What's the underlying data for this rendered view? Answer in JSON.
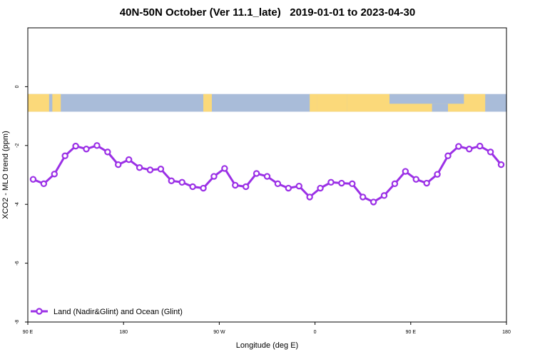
{
  "chart_data": {
    "type": "line",
    "title": "40N-50N October (Ver 11.1_late)   2019-01-01 to 2023-04-30",
    "xlabel": "Longitude (deg E)",
    "ylabel": "XCO2 - MLO trend (ppm)",
    "x_ticks": [
      {
        "value": 90,
        "label": "90 E"
      },
      {
        "value": 180,
        "label": "180"
      },
      {
        "value": 270,
        "label": "90 W"
      },
      {
        "value": 360,
        "label": "0"
      },
      {
        "value": 450,
        "label": "90 E"
      },
      {
        "value": 540,
        "label": "180"
      }
    ],
    "y_ticks": [
      0,
      -2,
      -4,
      -6,
      -8
    ],
    "xlim": [
      90,
      540
    ],
    "ylim": [
      -8,
      2
    ],
    "grid": false,
    "legend_position": "bottom-left",
    "map_strip": {
      "description_free": true,
      "land_color": "#fbd97a",
      "ocean_color": "#a9bcd9",
      "ylim": [
        -0.85,
        -0.25
      ]
    },
    "series": [
      {
        "name": "Land (Nadir&Glint) and Ocean (Glint)",
        "color": "#9b30e6",
        "x": [
          95,
          105,
          115,
          125,
          135,
          145,
          155,
          165,
          175,
          185,
          195,
          205,
          215,
          225,
          235,
          245,
          255,
          265,
          275,
          285,
          295,
          305,
          315,
          325,
          335,
          345,
          355,
          365,
          375,
          385,
          395,
          405,
          415,
          425,
          435,
          445,
          455,
          465,
          475,
          485,
          495,
          505,
          515,
          525,
          535
        ],
        "y": [
          -3.15,
          -3.3,
          -2.97,
          -2.35,
          -2.02,
          -2.12,
          -2.0,
          -2.22,
          -2.65,
          -2.48,
          -2.75,
          -2.83,
          -2.8,
          -3.2,
          -3.25,
          -3.4,
          -3.45,
          -3.05,
          -2.78,
          -3.35,
          -3.4,
          -2.95,
          -3.05,
          -3.3,
          -3.45,
          -3.38,
          -3.75,
          -3.45,
          -3.25,
          -3.28,
          -3.3,
          -3.75,
          -3.92,
          -3.7,
          -3.3,
          -2.88,
          -3.15,
          -3.28,
          -2.98,
          -2.35,
          -2.03,
          -2.12,
          -2.02,
          -2.22,
          -2.65
        ]
      }
    ]
  }
}
